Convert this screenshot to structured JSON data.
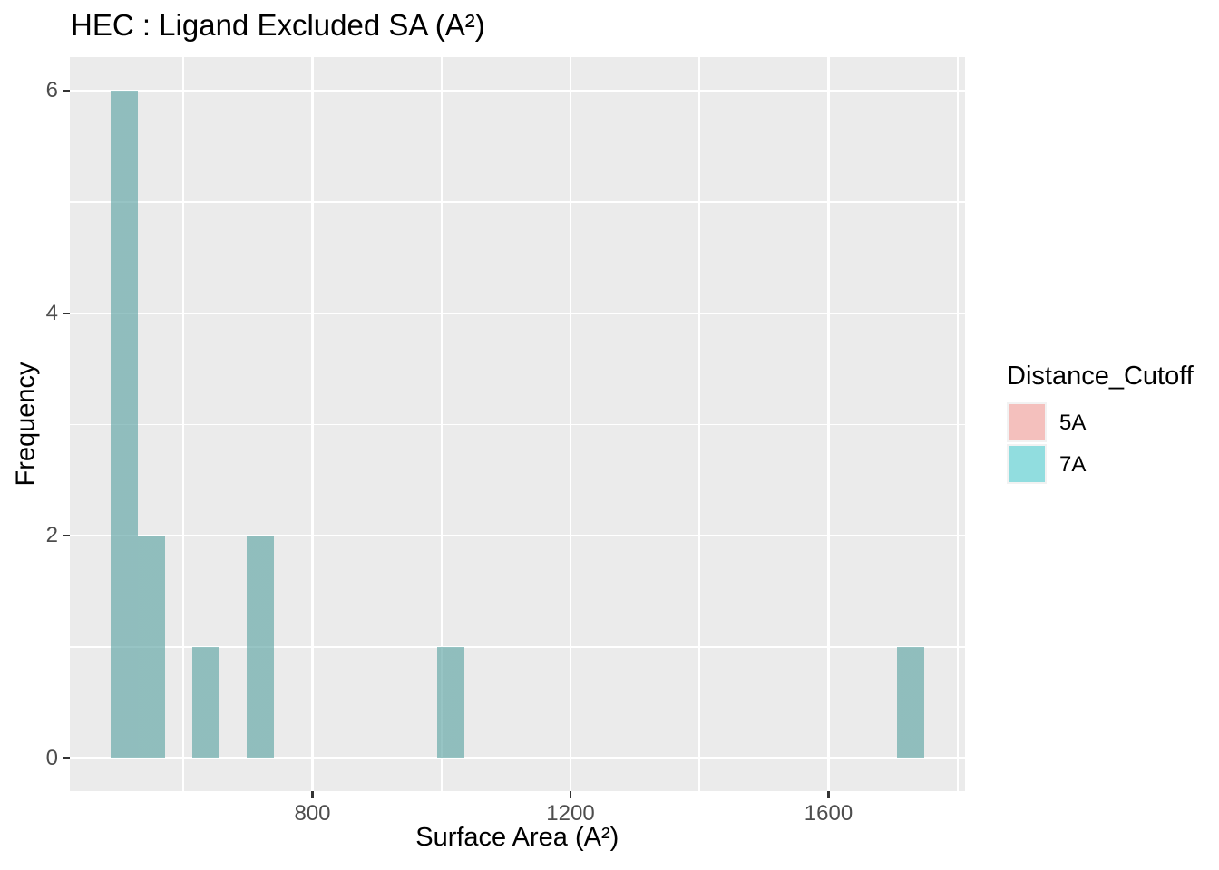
{
  "title": {
    "text": "HEC : Ligand Excluded SA (A²)"
  },
  "x_axis": {
    "label": "Surface Area (A²)",
    "tick_labels": [
      "800",
      "1200",
      "1600"
    ],
    "tick_values": [
      800,
      1200,
      1600
    ],
    "minor_gridline_values": [
      600,
      1000,
      1400,
      1800
    ]
  },
  "y_axis": {
    "label": "Frequency",
    "tick_labels": [
      "0",
      "2",
      "4",
      "6"
    ],
    "tick_values": [
      0,
      2,
      4,
      6
    ],
    "minor_gridline_values": [
      1,
      3,
      5
    ]
  },
  "legend": {
    "title": "Distance_Cutoff",
    "items": [
      {
        "label": "5A",
        "fill": "#F8766D",
        "rendered_swatch": "#F4C0BD"
      },
      {
        "label": "7A",
        "fill": "#00BFC4",
        "rendered_swatch": "#91DEE0"
      }
    ]
  },
  "colors": {
    "panel_background": "#EBEBEB",
    "gridline": "#FFFFFF",
    "tick_mark": "#333333",
    "tick_label": "#4D4D4D",
    "text": "#000000",
    "bar_rendered_overlap": "#90BDBD",
    "fill_alpha": 0.4
  },
  "chart_data": {
    "type": "bar",
    "subtype": "histogram",
    "title": "HEC : Ligand Excluded SA (A²)",
    "xlabel": "Surface Area (A²)",
    "ylabel": "Frequency",
    "xlim": [
      423,
      1812
    ],
    "ylim": [
      0,
      6.3
    ],
    "bin_width": 42.2,
    "grid": true,
    "legend_position": "right",
    "legend_title": "Distance_Cutoff",
    "series": [
      {
        "name": "5A",
        "fill": "#F8766D",
        "note": "bins coincide exactly with the 7A series and are rendered underneath it at alpha 0.4; no pink is separately visible",
        "bins": [
          {
            "x0": 487,
            "x1": 529,
            "count": 6
          },
          {
            "x0": 529,
            "x1": 571,
            "count": 2
          },
          {
            "x0": 614,
            "x1": 656,
            "count": 1
          },
          {
            "x0": 698,
            "x1": 740,
            "count": 2
          },
          {
            "x0": 993,
            "x1": 1036,
            "count": 1
          },
          {
            "x0": 1706,
            "x1": 1748,
            "count": 1
          }
        ]
      },
      {
        "name": "7A",
        "fill": "#00BFC4",
        "bins": [
          {
            "x0": 487,
            "x1": 529,
            "count": 6
          },
          {
            "x0": 529,
            "x1": 571,
            "count": 2
          },
          {
            "x0": 614,
            "x1": 656,
            "count": 1
          },
          {
            "x0": 698,
            "x1": 740,
            "count": 2
          },
          {
            "x0": 993,
            "x1": 1036,
            "count": 1
          },
          {
            "x0": 1706,
            "x1": 1748,
            "count": 1
          }
        ]
      }
    ]
  }
}
